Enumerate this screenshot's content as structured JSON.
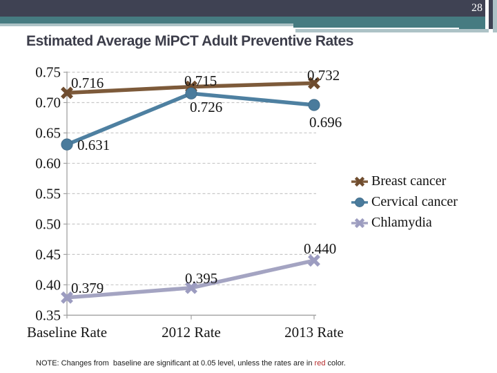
{
  "slide": {
    "page_number": "28",
    "title": "Estimated Average MiPCT Adult Preventive Rates"
  },
  "colors": {
    "header_bar": "#3f4253",
    "teal_band": "#467b81",
    "light_band": "#adc2c6",
    "title_text": "#3c3d4a",
    "axis": "#a0a0a0",
    "gridline": "#c7c7c7",
    "chart_text": "#151515"
  },
  "chart_data": {
    "type": "line",
    "title": "Estimated Average MiPCT Adult Preventive Rates",
    "categories": [
      "Baseline Rate",
      "2012 Rate",
      "2013 Rate"
    ],
    "series": [
      {
        "name": "Breast cancer",
        "color": "#7d5a3a",
        "marker_color": "#6f4c2e",
        "marker": "x",
        "values": [
          0.716,
          0.726,
          0.732
        ],
        "labels": [
          "0.716",
          "0.726",
          "0.732"
        ]
      },
      {
        "name": "Cervical cancer",
        "color": "#4e80a1",
        "marker_color": "#4a7b9c",
        "marker": "circle",
        "values": [
          0.631,
          0.715,
          0.696
        ],
        "labels": [
          "0.631",
          "0.715",
          "0.696"
        ]
      },
      {
        "name": "Chlamydia",
        "color": "#a4a4c2",
        "marker_color": "#9c9cc0",
        "marker": "x",
        "values": [
          0.379,
          0.395,
          0.44
        ],
        "labels": [
          "0.379",
          "0.395",
          "0.440"
        ]
      }
    ],
    "ylim": [
      0.35,
      0.75
    ],
    "yticks": [
      0.75,
      0.7,
      0.65,
      0.6,
      0.55,
      0.5,
      0.45,
      0.4,
      0.35
    ],
    "ytick_labels": [
      "0.75",
      "0.70",
      "0.65",
      "0.60",
      "0.55",
      "0.50",
      "0.45",
      "0.40",
      "0.35"
    ],
    "grid": "horizontal-dashed",
    "legend_position": "right"
  },
  "note": {
    "prefix": "NOTE: Changes from  baseline are significant at 0.05 level, unless the rates are in ",
    "highlight": "red",
    "suffix": " color.",
    "highlight_color": "#b42828"
  }
}
